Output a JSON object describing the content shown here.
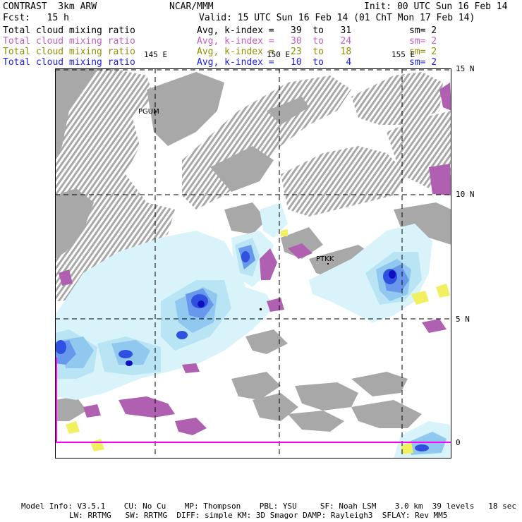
{
  "header": {
    "model": "CONTRAST  3km ARW",
    "center": "NCAR/MMM",
    "init": "Init: 00 UTC Sun 16 Feb 14",
    "fcst": "Fcst:   15 h",
    "valid": "Valid: 15 UTC Sun 16 Feb 14 (01 ChT Mon 17 Feb 14)"
  },
  "legend": [
    {
      "label": "Total cloud mixing ratio",
      "range": "Avg, k-index =   39  to   31",
      "sm": "sm= 2",
      "color": "#000000"
    },
    {
      "label": "Total cloud mixing ratio",
      "range": "Avg, k-index =   30  to   24",
      "sm": "sm= 2",
      "color": "#c060c0"
    },
    {
      "label": "Total cloud mixing ratio",
      "range": "Avg, k-index =   23  to   18",
      "sm": "sm= 2",
      "color": "#909000"
    },
    {
      "label": "Total cloud mixing ratio",
      "range": "Avg, k-index =   10  to    4",
      "sm": "sm= 2",
      "color": "#2020e0"
    }
  ],
  "map": {
    "lon_labels": [
      "145 E",
      "150 E",
      "155 E"
    ],
    "lat_labels": [
      "15 N",
      "10 N",
      "5 N",
      "0"
    ],
    "stations": [
      "PGUM",
      "PTKK"
    ],
    "colors": {
      "low": "#a8a8a8",
      "mid": "#b060b0",
      "high_mid": "#f0f060",
      "high_1": "#d8f4fa",
      "high_2": "#b8e4f4",
      "high_3": "#90c8f0",
      "high_4": "#6898ec",
      "high_5": "#3050e0",
      "high_6": "#1010c0",
      "domain_edge": "#ff00ff"
    }
  },
  "footer": {
    "line1": "Model Info: V3.5.1    CU: No Cu    MP: Thompson    PBL: YSU     SF: Noah LSM    3.0 km  39 levels   18 sec",
    "line2": "LW: RRTMG   SW: RRTMG  DIFF: simple KM: 3D Smagor DAMP: Rayleigh3  SFLAY: Rev MM5"
  }
}
